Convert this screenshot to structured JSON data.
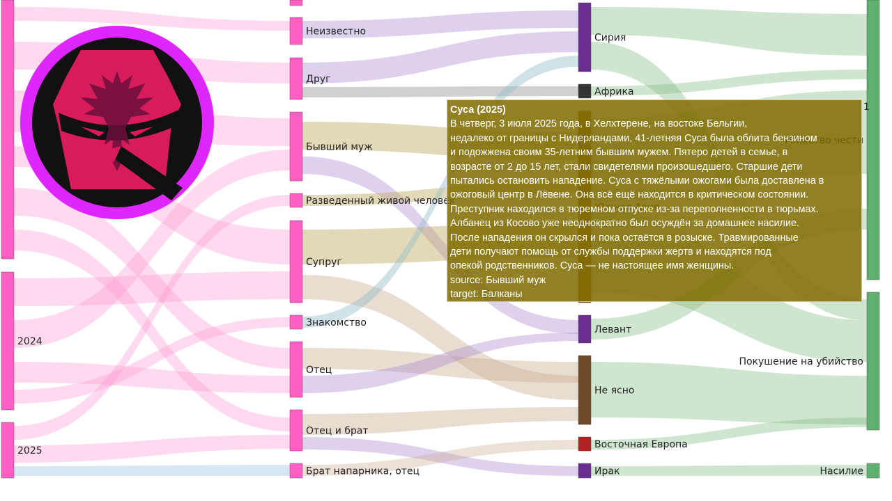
{
  "colors": {
    "year_node": "#ff5ec4",
    "relation_node": "#ff5ec4",
    "region_colors": {
      "Сирия": "#6a2c91",
      "Африка": "#333333",
      "Южная Азия": "#8b6914",
      "Левант": "#6a2c91",
      "Не ясно": "#6e4a2a",
      "Восточная Европа": "#b22222",
      "Ирак": "#6a2c91",
      "Балканы": "#8b6914"
    },
    "outcome_node": "#5fb070",
    "logo_ring": "#e026ff",
    "logo_fill": "#d81b5a"
  },
  "nodes": {
    "years": [
      {
        "id": "y_top",
        "label": ""
      },
      {
        "id": "y2024",
        "label": "2024"
      },
      {
        "id": "y2025",
        "label": "2025"
      }
    ],
    "relations": [
      {
        "id": "r_top",
        "label": ""
      },
      {
        "id": "r_unknown",
        "label": "Неизвестно"
      },
      {
        "id": "r_friend",
        "label": "Друг"
      },
      {
        "id": "r_exhusband",
        "label": "Бывший муж"
      },
      {
        "id": "r_divorced",
        "label": "Разведенный живой человек"
      },
      {
        "id": "r_spouse",
        "label": "Супруг"
      },
      {
        "id": "r_acq",
        "label": "Знакомство"
      },
      {
        "id": "r_father",
        "label": "Отец"
      },
      {
        "id": "r_fatherbrother",
        "label": "Отец и брат"
      },
      {
        "id": "r_partnerbro",
        "label": "Брат напарника, отец"
      }
    ],
    "regions": [
      {
        "id": "g_syria",
        "label": "Сирия"
      },
      {
        "id": "g_africa",
        "label": "Африка"
      },
      {
        "id": "g_sasia",
        "label": "Южная Азия"
      },
      {
        "id": "g_levant",
        "label": "Левант"
      },
      {
        "id": "g_unclear",
        "label": "Не ясно"
      },
      {
        "id": "g_eeurope",
        "label": "Восточная Европа"
      },
      {
        "id": "g_iraq",
        "label": "Ирак"
      }
    ],
    "outcomes": [
      {
        "id": "o_honor",
        "label": "Убийство чести"
      },
      {
        "id": "o_attempt",
        "label": "Покушение на убийство"
      },
      {
        "id": "o_violence",
        "label": "Насилие"
      }
    ]
  },
  "tooltip": {
    "title": "Суса (2025)",
    "lines": [
      "В четверг, 3 июля 2025 года, в Хелхтерене, на востоке Бельгии,",
      "недалеко от границы с Нидерландами, 41-летняя Суса была облита бензином",
      "и подожжена своим 35-летним бывшим мужем. Пятеро детей в семье, в",
      "возрасте от 2 до 15 лет, стали свидетелями произошедшего. Старшие дети",
      "пытались остановить нападение. Суса с тяжёлыми ожогами была доставлена в",
      "ожоговый центр в Лёвене. Она всё ещё находится в критическом состоянии.",
      "Преступник находился в тюремном отпуске из-за переполненности в тюрьмах.",
      "Албанец из Косово уже неоднократно был осуждён за домашнее насилие.",
      "После нападения он скрылся и пока остаётся в розыске. Травмированные",
      "дети получают помощь от службы поддержки жертв и находятся под",
      "опекой родственников. Суса — не настоящее имя женщины."
    ],
    "source": "source: Бывший муж",
    "target": "target: Балканы",
    "edge_count": "1"
  },
  "logo": {
    "icon": "albanian-eagle-icon"
  }
}
